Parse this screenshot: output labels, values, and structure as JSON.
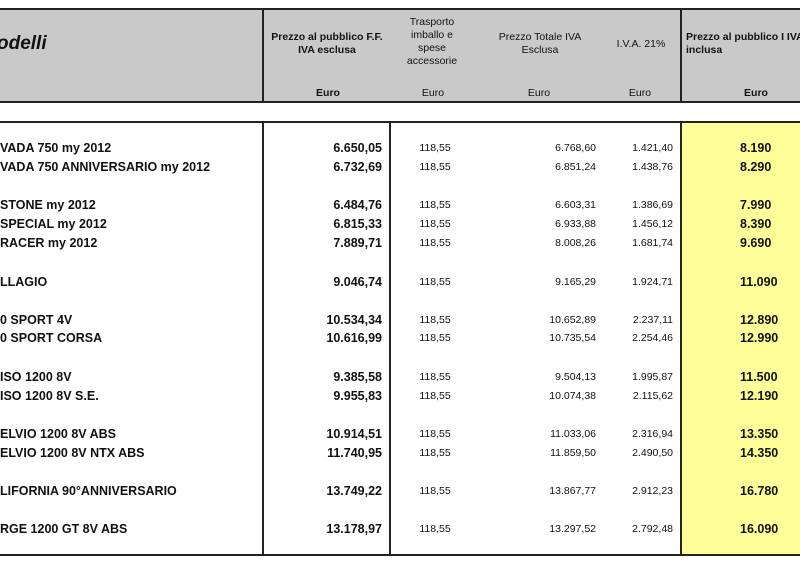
{
  "header": {
    "title": "odelli",
    "col_prezzo_ff": "Prezzo al pubblico F.F. IVA esclusa",
    "col_trasporto": "Trasporto imballo e spese accessorie",
    "col_totale": "Prezzo Totale  IVA Esclusa",
    "col_iva": "I.V.A. 21%",
    "col_finale": "Prezzo al pubblico I IVA inclusa",
    "unit": "Euro"
  },
  "colors": {
    "header_bg": "#c9c9c9",
    "highlight": "#ffff99"
  },
  "rows": [
    {
      "model": "VADA 750 my 2012",
      "prezzo_ff": "6.650,05",
      "trasporto": "118,55",
      "totale": "6.768,60",
      "iva": "1.421,40",
      "finale": "8.190"
    },
    {
      "model": "VADA 750 ANNIVERSARIO my 2012",
      "prezzo_ff": "6.732,69",
      "trasporto": "118,55",
      "totale": "6.851,24",
      "iva": "1.438,76",
      "finale": "8.290"
    },
    {
      "model": "STONE my 2012",
      "prezzo_ff": "6.484,76",
      "trasporto": "118,55",
      "totale": "6.603,31",
      "iva": "1.386,69",
      "finale": "7.990"
    },
    {
      "model": "SPECIAL my 2012",
      "prezzo_ff": "6.815,33",
      "trasporto": "118,55",
      "totale": "6.933,88",
      "iva": "1.456,12",
      "finale": "8.390"
    },
    {
      "model": "RACER my 2012",
      "prezzo_ff": "7.889,71",
      "trasporto": "118,55",
      "totale": "8.008,26",
      "iva": "1.681,74",
      "finale": "9.690"
    },
    {
      "model": "LLAGIO",
      "prezzo_ff": "9.046,74",
      "trasporto": "118,55",
      "totale": "9.165,29",
      "iva": "1.924,71",
      "finale": "11.090"
    },
    {
      "model": "0 SPORT 4V",
      "prezzo_ff": "10.534,34",
      "trasporto": "118,55",
      "totale": "10.652,89",
      "iva": "2.237,11",
      "finale": "12.890"
    },
    {
      "model": "0 SPORT CORSA",
      "prezzo_ff": "10.616,99",
      "trasporto": "118,55",
      "totale": "10.735,54",
      "iva": "2.254,46",
      "finale": "12.990"
    },
    {
      "model": "ISO 1200 8V",
      "prezzo_ff": "9.385,58",
      "trasporto": "118,55",
      "totale": "9.504,13",
      "iva": "1.995,87",
      "finale": "11.500"
    },
    {
      "model": "ISO 1200 8V S.E.",
      "prezzo_ff": "9.955,83",
      "trasporto": "118,55",
      "totale": "10.074,38",
      "iva": "2.115,62",
      "finale": "12.190"
    },
    {
      "model": "ELVIO 1200 8V ABS",
      "prezzo_ff": "10.914,51",
      "trasporto": "118,55",
      "totale": "11.033,06",
      "iva": "2.316,94",
      "finale": "13.350"
    },
    {
      "model": "ELVIO 1200 8V NTX ABS",
      "prezzo_ff": "11.740,95",
      "trasporto": "118,55",
      "totale": "11.859,50",
      "iva": "2.490,50",
      "finale": "14.350"
    },
    {
      "model": "LIFORNIA 90°ANNIVERSARIO",
      "prezzo_ff": "13.749,22",
      "trasporto": "118,55",
      "totale": "13.867,77",
      "iva": "2.912,23",
      "finale": "16.780"
    },
    {
      "model": "RGE 1200 GT 8V ABS",
      "prezzo_ff": "13.178,97",
      "trasporto": "118,55",
      "totale": "13.297,52",
      "iva": "2.792,48",
      "finale": "16.090"
    }
  ]
}
